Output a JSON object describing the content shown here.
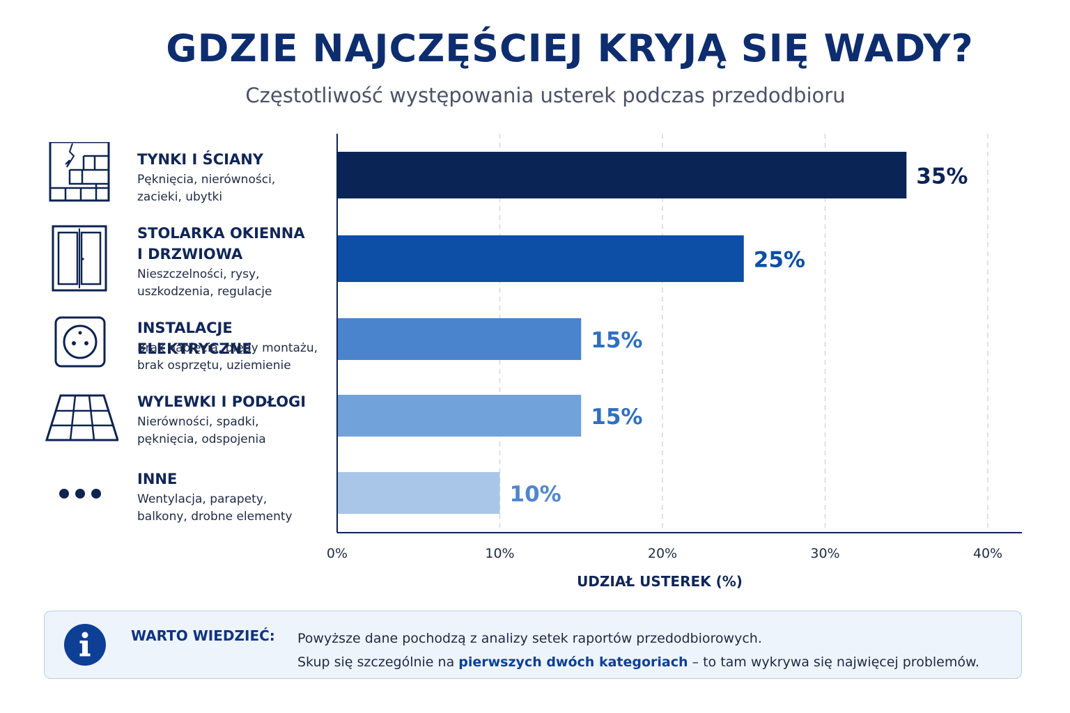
{
  "header": {
    "title": "GDZIE NAJCZĘŚCIEJ KRYJĄ SIĘ WADY?",
    "subtitle": "Częstotliwość występowania usterek podczas przedodbioru"
  },
  "categories": [
    {
      "name_line1": "TYNKI I ŚCIANY",
      "name_line2": "",
      "desc_line1": "Pęknięcia, nierówności,",
      "desc_line2": "zacieki, ubytki",
      "icon": "cracked-wall-icon"
    },
    {
      "name_line1": "STOLARKA OKIENNA",
      "name_line2": "I DRZWIOWA",
      "desc_line1": "Nieszczelności, rysy,",
      "desc_line2": "uszkodzenia, regulacje",
      "icon": "window-door-icon"
    },
    {
      "name_line1": "INSTALACJE ELEKTRYCZNE",
      "name_line2": "",
      "desc_line1": "Brak napięcia, błędy montażu,",
      "desc_line2": "brak osprzętu, uziemienie",
      "icon": "power-socket-icon"
    },
    {
      "name_line1": "WYLEWKI I PODŁOGI",
      "name_line2": "",
      "desc_line1": "Nierówności, spadki,",
      "desc_line2": "pęknięcia, odspojenia",
      "icon": "floor-tiles-icon"
    },
    {
      "name_line1": "INNE",
      "name_line2": "",
      "desc_line1": "Wentylacja, parapety,",
      "desc_line2": "balkony, drobne elementy",
      "icon": "more-dots-icon"
    }
  ],
  "chart_data": {
    "type": "bar",
    "orientation": "horizontal",
    "categories": [
      "TYNKI I ŚCIANY",
      "STOLARKA OKIENNA I DRZWIOWA",
      "INSTALACJE ELEKTRYCZNE",
      "WYLEWKI I PODŁOGI",
      "INNE"
    ],
    "values": [
      35,
      25,
      15,
      15,
      10
    ],
    "value_labels": [
      "35%",
      "25%",
      "15%",
      "15%",
      "10%"
    ],
    "colors": [
      "#0b2456",
      "#0d4ea6",
      "#4a84cc",
      "#72a2da",
      "#a9c6e8"
    ],
    "label_colors": [
      "#0b2456",
      "#0d4ea6",
      "#2f6fc0",
      "#2f6fc0",
      "#4f86cc"
    ],
    "xlim": [
      0,
      40
    ],
    "ticks": [
      "0%",
      "10%",
      "20%",
      "30%",
      "40%"
    ],
    "tick_values": [
      0,
      10,
      20,
      30,
      40
    ],
    "xlabel": "UDZIAŁ USTEREK (%)",
    "grid": "vertical dashed"
  },
  "info": {
    "label": "WARTO WIEDZIEĆ:",
    "line1": "Powyższe dane pochodzą z analizy setek raportów przedodbiorowych.",
    "line2_pre": "Skup się szczególnie na ",
    "line2_highlight": "pierwszych dwóch kategoriach",
    "line2_post": " – to tam wykrywa się najwięcej problemów.",
    "icon": "info-icon"
  }
}
